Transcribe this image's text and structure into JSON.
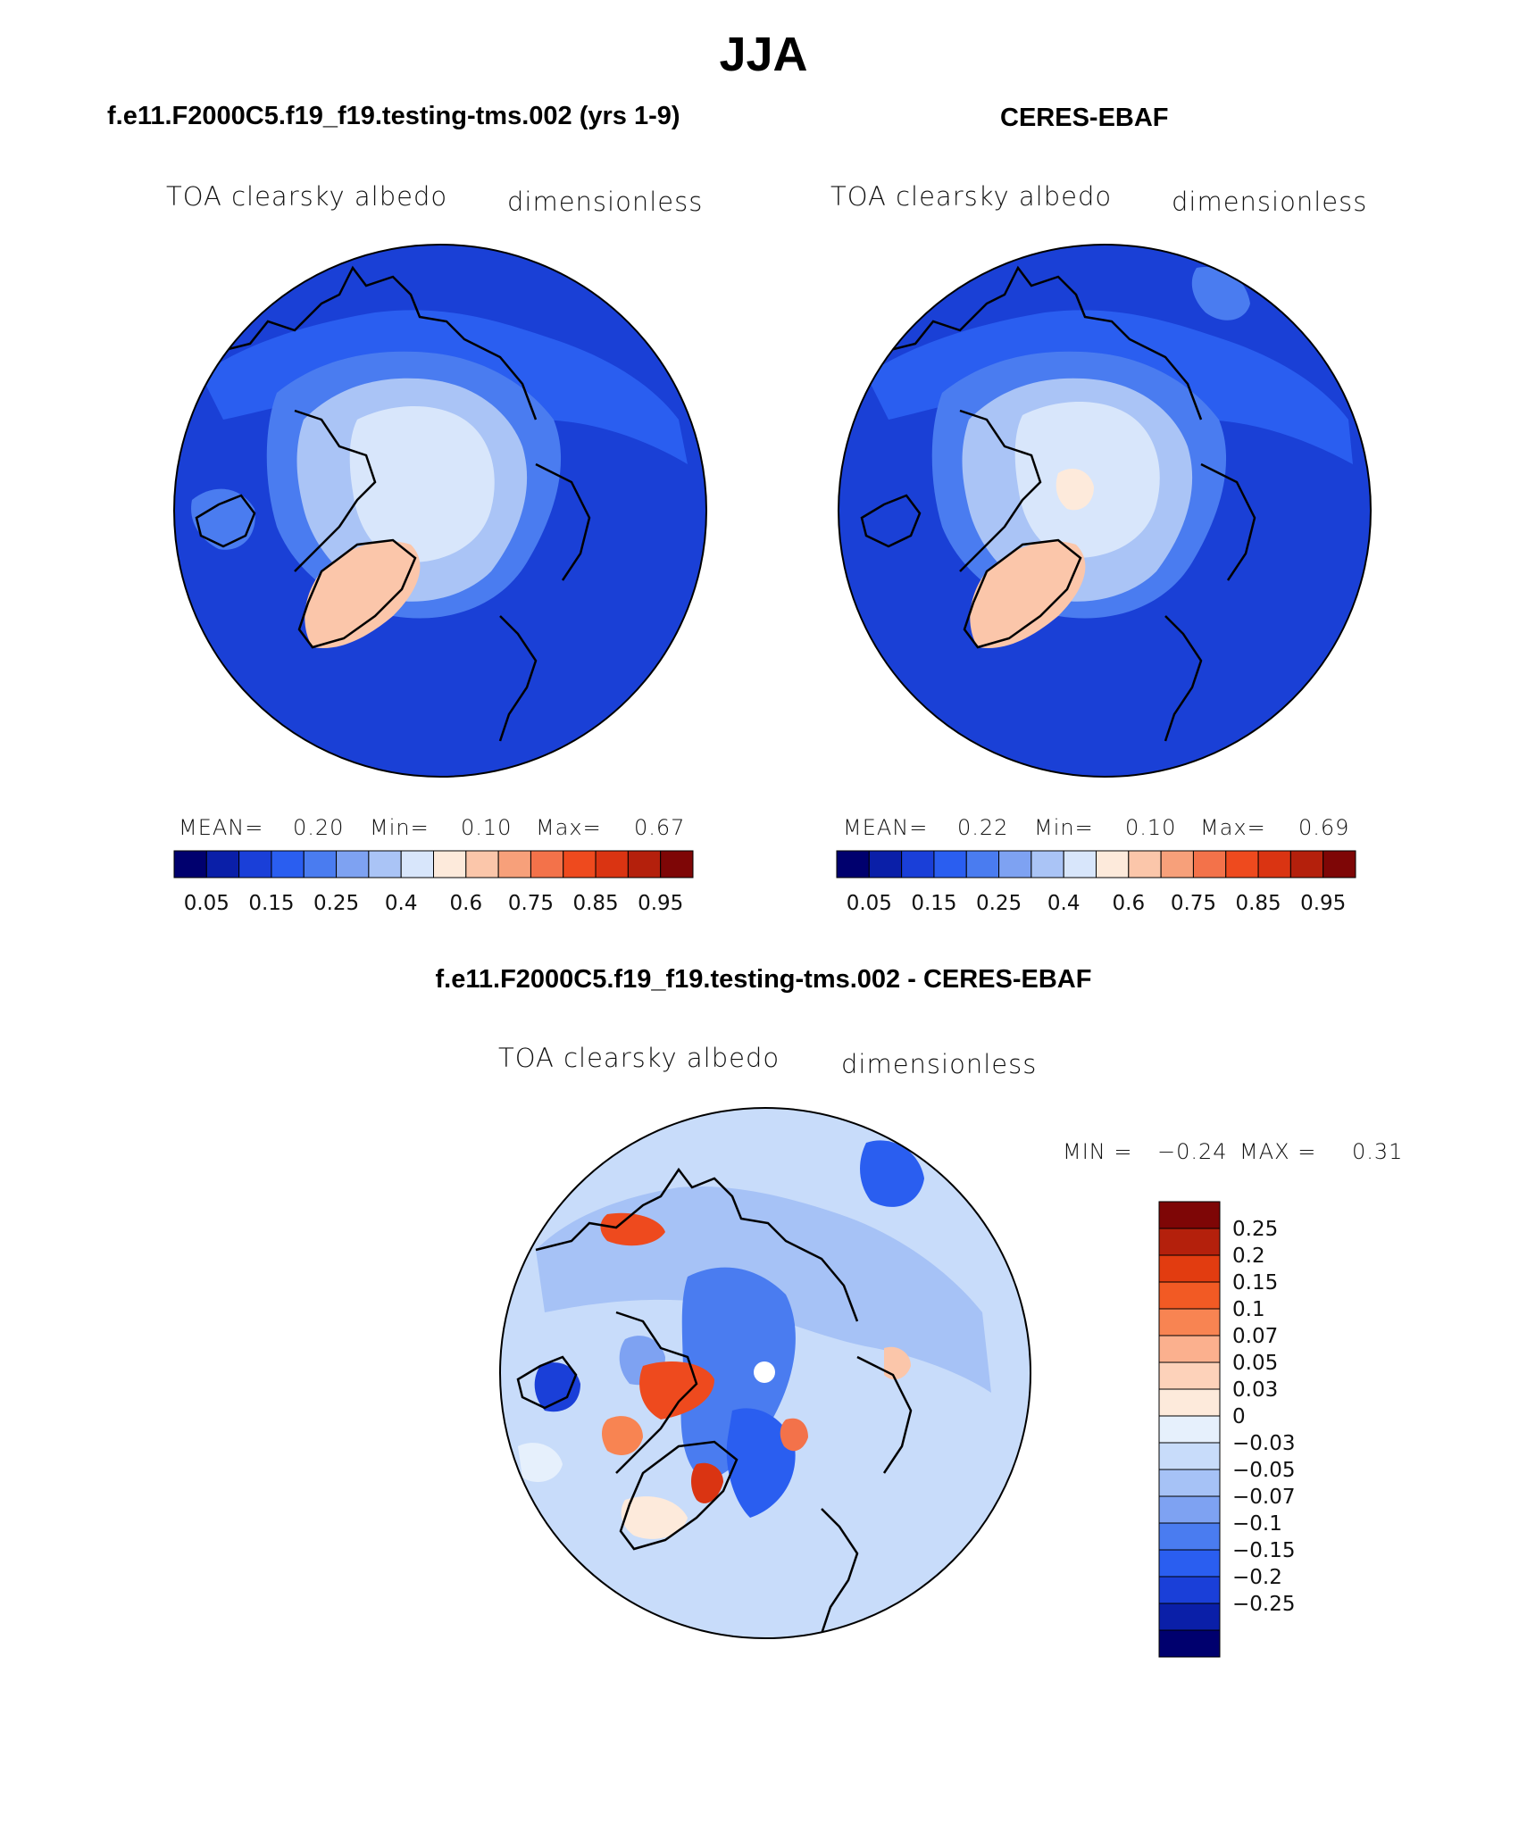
{
  "title": "JJA",
  "panels": [
    {
      "id": "model",
      "header": "f.e11.F2000C5.f19_f19.testing-tms.002 (yrs 1-9)",
      "variable": "TOA clearsky albedo",
      "units": "dimensionless",
      "stats": {
        "mean_label": "MEAN=",
        "mean": "0.20",
        "min_label": "Min=",
        "min": "0.10",
        "max_label": "Max=",
        "max": "0.67"
      }
    },
    {
      "id": "obs",
      "header": "CERES-EBAF",
      "variable": "TOA clearsky albedo",
      "units": "dimensionless",
      "stats": {
        "mean_label": "MEAN=",
        "mean": "0.22",
        "min_label": "Min=",
        "min": "0.10",
        "max_label": "Max=",
        "max": "0.69"
      }
    }
  ],
  "abs_colorbar": {
    "colors": [
      "#00006e",
      "#0a1fa8",
      "#1a3fd8",
      "#2a5ef0",
      "#4a7cf0",
      "#7ea2f2",
      "#aac4f6",
      "#d8e6fb",
      "#fdeadb",
      "#fbc6aa",
      "#f7a07a",
      "#f3724a",
      "#ee4a1e",
      "#da3412",
      "#b4200c",
      "#7e0606"
    ],
    "tick_labels": [
      "0.05",
      "0.15",
      "0.25",
      "0.4",
      "0.6",
      "0.75",
      "0.85",
      "0.95"
    ]
  },
  "diff": {
    "header": "f.e11.F2000C5.f19_f19.testing-tms.002 - CERES-EBAF",
    "variable": "TOA clearsky albedo",
    "units": "dimensionless",
    "min_label": "MIN =",
    "min": "−0.24",
    "max_label": "MAX =",
    "max": "0.31"
  },
  "diff_colorbar": {
    "colors": [
      "#7e0606",
      "#b4200c",
      "#e23c10",
      "#f25a24",
      "#f88452",
      "#fbb08e",
      "#fdd2ba",
      "#fdeadb",
      "#e6f0fc",
      "#c8dcfa",
      "#a6c2f6",
      "#7ea2f2",
      "#4a7cf0",
      "#2a5ef0",
      "#1a3fd8",
      "#0a1fa8",
      "#00006e"
    ],
    "tick_labels": [
      "0.25",
      "0.2",
      "0.15",
      "0.1",
      "0.07",
      "0.05",
      "0.03",
      "0",
      "−0.03",
      "−0.05",
      "−0.07",
      "−0.1",
      "−0.15",
      "−0.2",
      "−0.25"
    ]
  }
}
